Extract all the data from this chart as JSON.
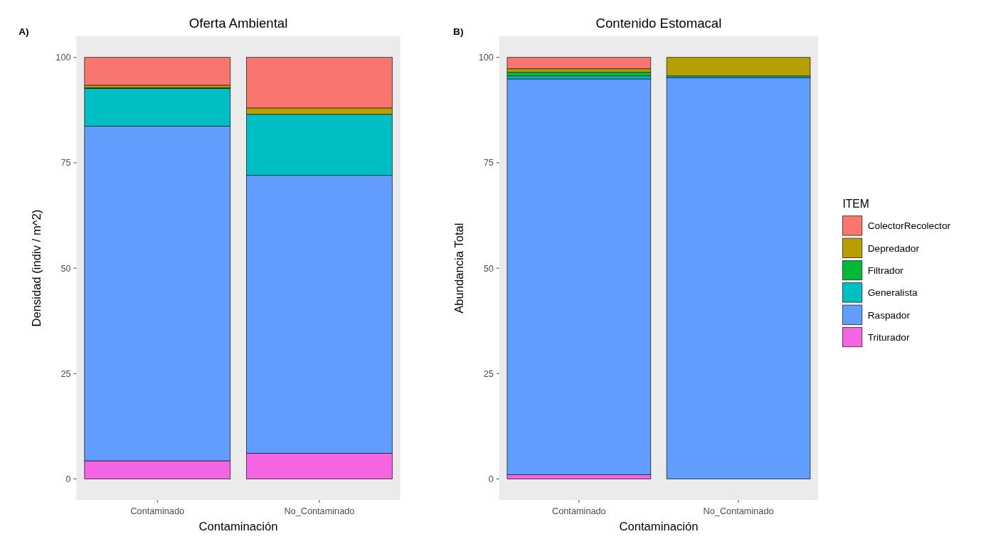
{
  "chart_data": [
    {
      "type": "bar",
      "title": "Oferta Ambiental",
      "xlabel": "Contaminación",
      "ylabel": "Densidad (indiv / m^2)",
      "categories": [
        "Contaminado",
        "No_Contaminado"
      ],
      "stacked": true,
      "ylim": [
        -5,
        105
      ],
      "yticks": [
        0,
        25,
        50,
        75,
        100
      ],
      "grid": false,
      "legend": false,
      "annotations": [
        "A)"
      ],
      "series": [
        {
          "color": "#f564e3",
          "values": [
            4.3,
            6.1
          ]
        },
        {
          "color": "#619cff",
          "values": [
            79.4,
            65.9
          ]
        },
        {
          "color": "#00bfc4",
          "values": [
            8.9,
            14.5
          ]
        },
        {
          "color": "#00ba38",
          "values": [
            0.2,
            0
          ]
        },
        {
          "color": "#b79f00",
          "values": [
            0.6,
            1.5
          ]
        },
        {
          "color": "#f8766d",
          "values": [
            6.6,
            12.0
          ]
        }
      ]
    },
    {
      "type": "bar",
      "title": "Contenido Estomacal",
      "xlabel": "Contaminación",
      "ylabel": "Abundancia Total",
      "legend_title": "ITEM",
      "categories": [
        "Contaminado",
        "No_Contaminado"
      ],
      "stacked": true,
      "ylim": [
        -5,
        105
      ],
      "yticks": [
        0,
        25,
        50,
        75,
        100
      ],
      "grid": false,
      "legend": "right",
      "annotations": [
        "B)"
      ],
      "series": [
        {
          "name": "Triturador",
          "color": "#f564e3",
          "values": [
            1.0,
            0
          ]
        },
        {
          "name": "Raspador",
          "color": "#619cff",
          "values": [
            93.9,
            95.2
          ]
        },
        {
          "name": "Generalista",
          "color": "#00bfc4",
          "values": [
            0.7,
            0.4
          ]
        },
        {
          "name": "Filtrador",
          "color": "#00ba38",
          "values": [
            0.9,
            0
          ]
        },
        {
          "name": "Depredador",
          "color": "#b79f00",
          "values": [
            0.8,
            4.4
          ]
        },
        {
          "name": "ColectorRecolector",
          "color": "#f8766d",
          "values": [
            2.7,
            0
          ]
        }
      ]
    }
  ]
}
